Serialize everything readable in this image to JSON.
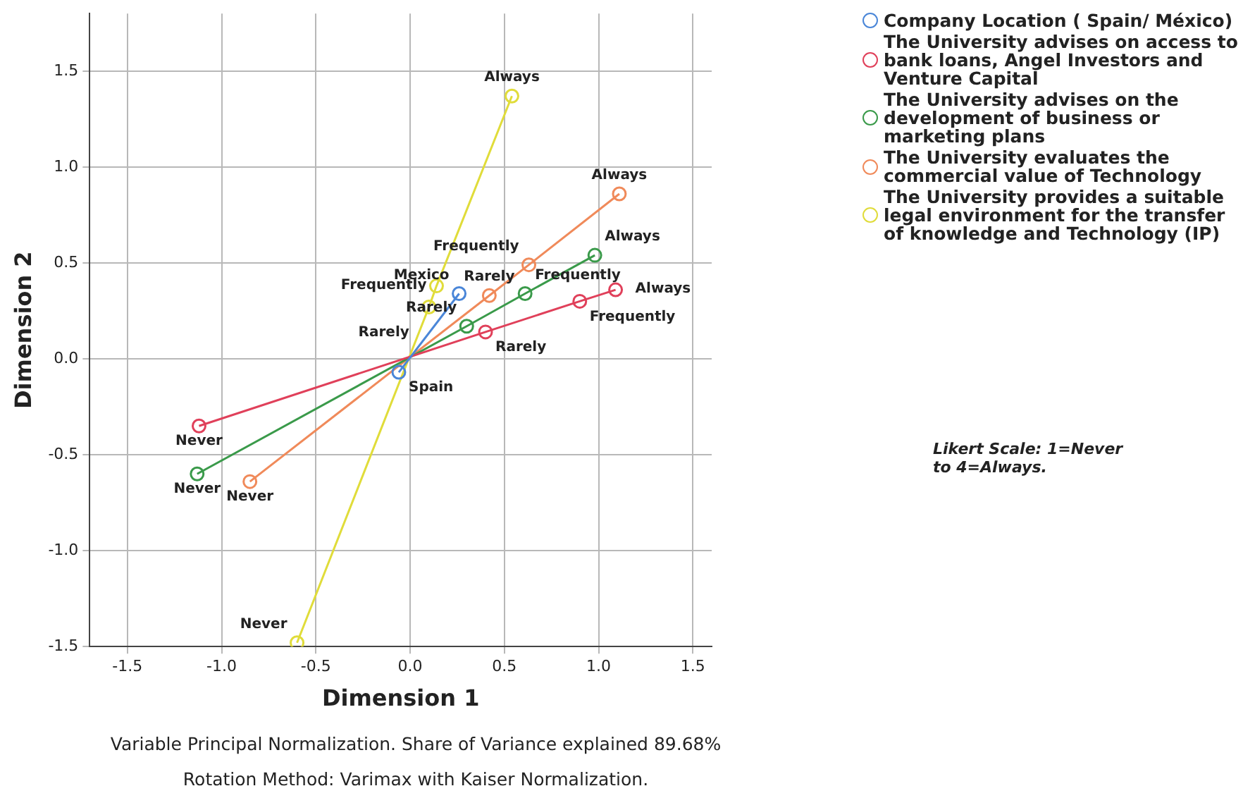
{
  "chart_data": {
    "type": "line",
    "xlabel": "Dimension 1",
    "ylabel": "Dimension 2",
    "xlim": [
      -1.7,
      1.6
    ],
    "ylim": [
      -1.5,
      1.8
    ],
    "xticks": [
      {
        "value": -1.5,
        "label": "-1.5"
      },
      {
        "value": -1,
        "label": "-1.0"
      },
      {
        "value": -0.5,
        "label": "-0.5"
      },
      {
        "value": 0,
        "label": "0.0"
      },
      {
        "value": 0.5,
        "label": "0.5"
      },
      {
        "value": 1,
        "label": "1.0"
      },
      {
        "value": 1.5,
        "label": "1.5"
      }
    ],
    "yticks": [
      {
        "value": -1.5,
        "label": "-1.5"
      },
      {
        "value": -1,
        "label": "-1.0"
      },
      {
        "value": -0.5,
        "label": "-0.5"
      },
      {
        "value": 0,
        "label": "0.0"
      },
      {
        "value": 0.5,
        "label": "0.5"
      },
      {
        "value": 1,
        "label": "1.0"
      },
      {
        "value": 1.5,
        "label": "1.5"
      }
    ],
    "grid": true,
    "legend": "right",
    "marker": "circle",
    "line_style": "solid",
    "series": [
      {
        "name": "Company Location ( Spain/ México)",
        "color": "#4a86d8",
        "x": [
          -0.06,
          0.26
        ],
        "values": [
          -0.07,
          0.34
        ]
      },
      {
        "name": "The University advises on access to bank loans, Angel Investors and Venture Capital",
        "color": "#e0405a",
        "x": [
          -1.12,
          0.4,
          0.9,
          1.09
        ],
        "values": [
          -0.35,
          0.14,
          0.3,
          0.36
        ]
      },
      {
        "name": "The University advises on the development of business or marketing plans",
        "color": "#3a9a4a",
        "x": [
          -1.13,
          0.3,
          0.61,
          0.98
        ],
        "values": [
          -0.6,
          0.17,
          0.34,
          0.54
        ]
      },
      {
        "name": "The University evaluates the commercial value of Technology",
        "color": "#f08a5a",
        "x": [
          -0.85,
          0.42,
          0.63,
          1.11
        ],
        "values": [
          -0.64,
          0.33,
          0.49,
          0.86
        ]
      },
      {
        "name": "The University provides a suitable legal environment for the transfer of knowledge and Technology (IP)",
        "color": "#e0dc3a",
        "x": [
          -0.6,
          0.1,
          0.14,
          0.54
        ],
        "values": [
          -1.48,
          0.27,
          0.38,
          1.37
        ]
      }
    ],
    "annotations": [
      "Likert Scale: 1=Never to 4=Always.",
      "Variable Principal Normalization. Share of Variance explained 89.68%",
      "Rotation Method: Varimax with Kaiser Normalization.",
      {
        "text": "Spain",
        "x": -0.06,
        "y": -0.07
      },
      {
        "text": "Mexico",
        "x": 0.26,
        "y": 0.34
      },
      {
        "text": "Never",
        "x": -1.12,
        "y": -0.35
      },
      {
        "text": "Rarely",
        "x": 0.4,
        "y": 0.14
      },
      {
        "text": "Frequently",
        "x": 0.9,
        "y": 0.3
      },
      {
        "text": "Always",
        "x": 1.09,
        "y": 0.36
      },
      {
        "text": "Never",
        "x": -1.13,
        "y": -0.6
      },
      {
        "text": "Rarely",
        "x": 0.3,
        "y": 0.17
      },
      {
        "text": "Frequently",
        "x": 0.61,
        "y": 0.34
      },
      {
        "text": "Always",
        "x": 0.98,
        "y": 0.54
      },
      {
        "text": "Never",
        "x": -0.85,
        "y": -0.64
      },
      {
        "text": "Rarely",
        "x": 0.42,
        "y": 0.33
      },
      {
        "text": "Frequently",
        "x": 0.63,
        "y": 0.49
      },
      {
        "text": "Always",
        "x": 1.11,
        "y": 0.86
      },
      {
        "text": "Never",
        "x": -0.6,
        "y": -1.48
      },
      {
        "text": "Rarely",
        "x": 0.1,
        "y": 0.27
      },
      {
        "text": "Frequently",
        "x": 0.14,
        "y": 0.38
      },
      {
        "text": "Always",
        "x": 0.54,
        "y": 1.37
      }
    ]
  }
}
